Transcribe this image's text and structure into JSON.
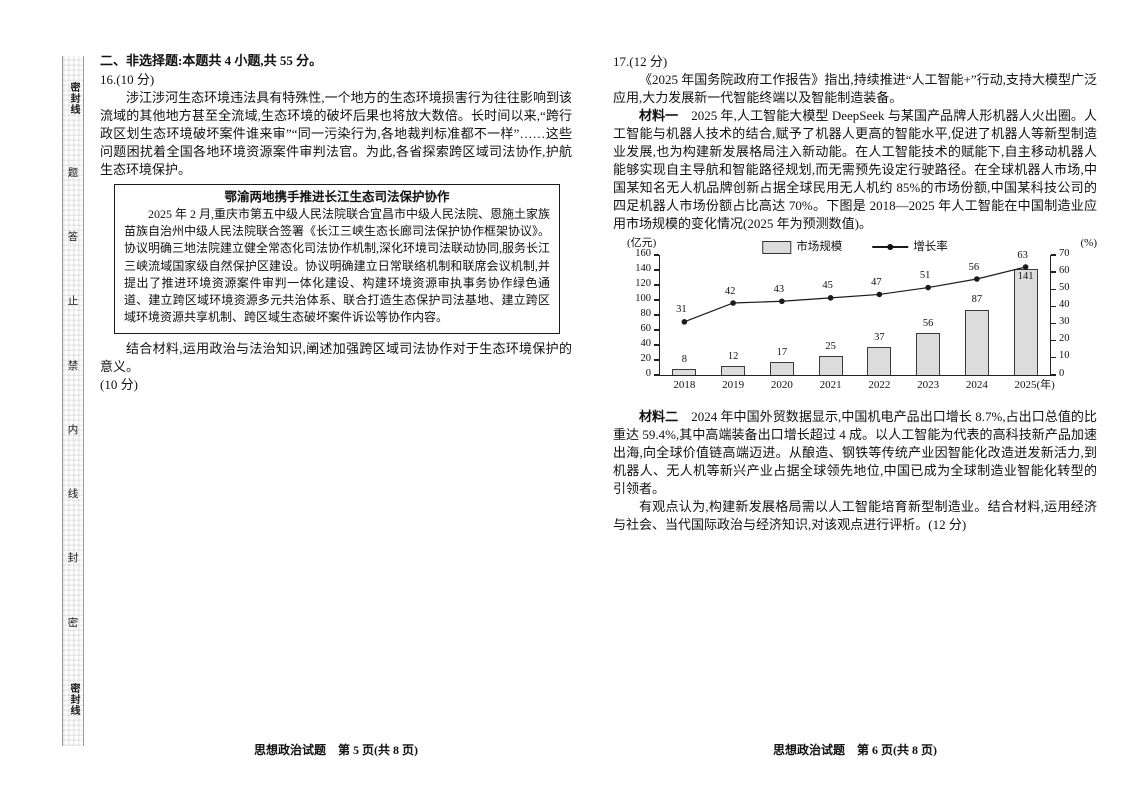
{
  "seal_strip": {
    "top_group": "密封线",
    "middle_chars": "题答止禁内线封密",
    "bottom_group": "密封线"
  },
  "left_page": {
    "section_heading": "二、非选择题:本题共 4 小题,共 55 分。",
    "q16": {
      "number": "16.(10 分)",
      "intro": "涉江涉河生态环境违法具有特殊性,一个地方的生态环境损害行为往往影响到该流域的其他地方甚至全流域,生态环境的破坏后果也将放大数倍。长时间以来,“跨行政区划生态环境破坏案件谁来审”“同一污染行为,各地裁判标准都不一样”……这些问题困扰着全国各地环境资源案件审判法官。为此,各省探索跨区域司法协作,护航生态环境保护。",
      "box_title": "鄂渝两地携手推进长江生态司法保护协作",
      "box_body": "2025 年 2 月,重庆市第五中级人民法院联合宜昌市中级人民法院、恩施土家族苗族自治州中级人民法院联合签署《长江三峡生态长廊司法保护协作框架协议》。协议明确三地法院建立健全常态化司法协作机制,深化环境司法联动协同,服务长江三峡流域国家级自然保护区建设。协议明确建立日常联络机制和联席会议机制,并提出了推进环境资源案件审判一体化建设、构建环境资源审执事务协作绿色通道、建立跨区域环境资源多元共治体系、联合打造生态保护司法基地、建立跨区域环境资源共享机制、跨区域生态破坏案件诉讼等协作内容。",
      "task": "结合材料,运用政治与法治知识,阐述加强跨区域司法协作对于生态环境保护的意义。",
      "task_score": "(10 分)"
    },
    "footer": "思想政治试题　第 5 页(共 8 页)"
  },
  "right_page": {
    "q17": {
      "number": "17.(12 分)",
      "intro": "《2025 年国务院政府工作报告》指出,持续推进“人工智能+”行动,支持大模型广泛应用,大力发展新一代智能终端以及智能制造装备。",
      "material1_label": "材料一",
      "material1": "2025 年,人工智能大模型 DeepSeek 与某国产品牌人形机器人火出圈。人工智能与机器人技术的结合,赋予了机器人更高的智能水平,促进了机器人等新型制造业发展,也为构建新发展格局注入新动能。在人工智能技术的赋能下,自主移动机器人能够实现自主导航和智能路径规划,而无需预先设定行驶路径。在全球机器人市场,中国某知名无人机品牌创新占据全球民用无人机约 85%的市场份额,中国某科技公司的四足机器人市场份额占比高达 70%。下图是 2018—2025 年人工智能在中国制造业应用市场规模的变化情况(2025 年为预测数值)。",
      "material2_label": "材料二",
      "material2": "2024 年中国外贸数据显示,中国机电产品出口增长 8.7%,占出口总值的比重达 59.4%,其中高端装备出口增长超过 4 成。以人工智能为代表的高科技新产品加速出海,向全球价值链高端迈进。从酿造、钢铁等传统产业因智能化改造迸发新活力,到机器人、无人机等新兴产业占据全球领先地位,中国已成为全球制造业智能化转型的引领者。",
      "task": "有观点认为,构建新发展格局需以人工智能培育新型制造业。结合材料,运用经济与社会、当代国际政治与经济知识,对该观点进行评析。(12 分)"
    },
    "footer": "思想政治试题　第 6 页(共 8 页)"
  },
  "chart_data": {
    "type": "combo-bar-line",
    "categories": [
      "2018",
      "2019",
      "2020",
      "2021",
      "2022",
      "2023",
      "2024",
      "2025"
    ],
    "series": [
      {
        "name": "市场规模",
        "type": "bar",
        "axis": "left",
        "values": [
          8,
          12,
          17,
          25,
          37,
          56,
          87,
          141
        ]
      },
      {
        "name": "增长率",
        "type": "line",
        "axis": "right",
        "values": [
          31,
          42,
          43,
          45,
          47,
          51,
          56,
          63
        ]
      }
    ],
    "left_axis": {
      "label": "(亿元)",
      "min": 0,
      "max": 160,
      "step": 20
    },
    "right_axis": {
      "label": "(%)",
      "min": 0,
      "max": 70,
      "step": 10
    },
    "x_suffix": "(年)",
    "legend_position": "top-center",
    "grid": "off",
    "bar_color": "#dcdcdc",
    "line_color": "#1a1a1a"
  }
}
